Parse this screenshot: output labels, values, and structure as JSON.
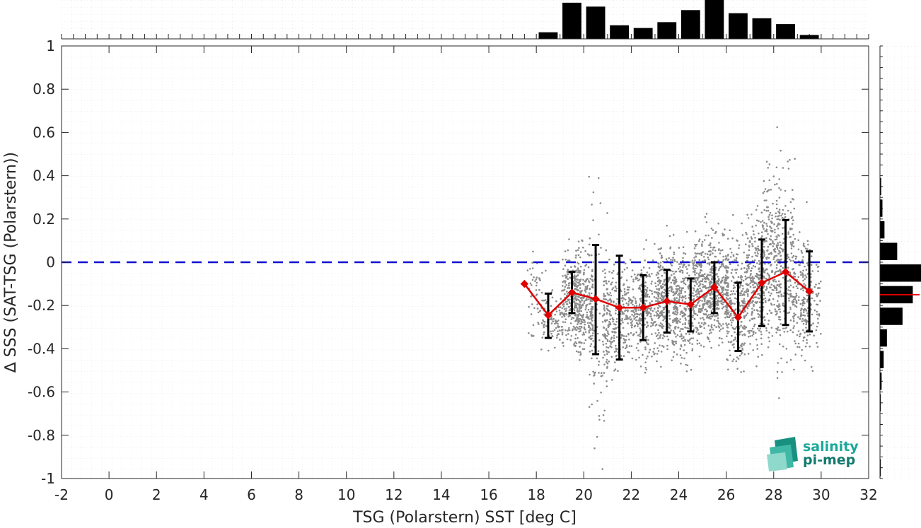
{
  "chart_data": {
    "type": "scatter",
    "title": "",
    "xlabel": "TSG (Polarstern) SST [deg C]",
    "ylabel": "∆ SSS (SAT-TSG (Polarstern))",
    "xlim": [
      -2,
      32
    ],
    "ylim": [
      -1,
      1
    ],
    "xticks": [
      -2,
      0,
      2,
      4,
      6,
      8,
      10,
      12,
      14,
      16,
      18,
      20,
      22,
      24,
      26,
      28,
      30,
      32
    ],
    "yticks": [
      -1,
      -0.8,
      -0.6,
      -0.4,
      -0.2,
      0,
      0.2,
      0.4,
      0.6,
      0.8,
      1
    ],
    "grid": "minor dotted",
    "reference_line": {
      "y": 0,
      "style": "dashed",
      "color": "#1010d0"
    },
    "binned_mean": {
      "color": "#e00000",
      "x": [
        17.5,
        18.5,
        19.5,
        20.5,
        21.5,
        22.5,
        23.5,
        24.5,
        25.5,
        26.5,
        27.5,
        28.5,
        29.5
      ],
      "y": [
        -0.1,
        -0.245,
        -0.14,
        -0.17,
        -0.21,
        -0.21,
        -0.18,
        -0.195,
        -0.115,
        -0.255,
        -0.095,
        -0.045,
        -0.135
      ],
      "err_low": [
        -0.1,
        -0.35,
        -0.235,
        -0.425,
        -0.45,
        -0.36,
        -0.325,
        -0.32,
        -0.235,
        -0.41,
        -0.295,
        -0.29,
        -0.32
      ],
      "err_high": [
        -0.1,
        -0.145,
        -0.045,
        0.08,
        0.03,
        -0.06,
        -0.035,
        -0.075,
        0.0,
        -0.095,
        0.105,
        0.195,
        0.05
      ]
    },
    "scatter_color": "#8c8c8c",
    "scatter_clusters": [
      {
        "x": 18.0,
        "mean": -0.18,
        "sd": 0.1,
        "n": 60
      },
      {
        "x": 18.7,
        "mean": -0.27,
        "sd": 0.06,
        "n": 80
      },
      {
        "x": 19.5,
        "mean": -0.16,
        "sd": 0.1,
        "n": 260
      },
      {
        "x": 20.0,
        "mean": -0.2,
        "sd": 0.12,
        "n": 260
      },
      {
        "x": 20.6,
        "mean": -0.3,
        "sd": 0.28,
        "n": 80
      },
      {
        "x": 21.2,
        "mean": -0.26,
        "sd": 0.12,
        "n": 200
      },
      {
        "x": 22.0,
        "mean": -0.22,
        "sd": 0.11,
        "n": 180
      },
      {
        "x": 22.8,
        "mean": -0.22,
        "sd": 0.11,
        "n": 200
      },
      {
        "x": 23.5,
        "mean": -0.17,
        "sd": 0.12,
        "n": 260
      },
      {
        "x": 24.2,
        "mean": -0.2,
        "sd": 0.12,
        "n": 260
      },
      {
        "x": 25.0,
        "mean": -0.12,
        "sd": 0.12,
        "n": 320
      },
      {
        "x": 25.7,
        "mean": -0.12,
        "sd": 0.12,
        "n": 300
      },
      {
        "x": 26.4,
        "mean": -0.2,
        "sd": 0.14,
        "n": 260
      },
      {
        "x": 27.2,
        "mean": -0.08,
        "sd": 0.15,
        "n": 260
      },
      {
        "x": 27.9,
        "mean": 0.02,
        "sd": 0.18,
        "n": 240
      },
      {
        "x": 28.5,
        "mean": -0.02,
        "sd": 0.22,
        "n": 220
      },
      {
        "x": 29.2,
        "mean": -0.15,
        "sd": 0.14,
        "n": 160
      },
      {
        "x": 29.6,
        "mean": -0.2,
        "sd": 0.12,
        "n": 80
      }
    ],
    "top_histogram": {
      "bin_centers": [
        18.5,
        19.5,
        20.5,
        21.5,
        22.5,
        23.5,
        24.5,
        25.5,
        26.5,
        27.5,
        28.5,
        29.5
      ],
      "relative_counts": [
        0.17,
        0.93,
        0.83,
        0.35,
        0.28,
        0.43,
        0.74,
        1.0,
        0.66,
        0.53,
        0.38,
        0.1
      ]
    },
    "side_histogram": {
      "bin_centers": [
        -0.95,
        -0.85,
        -0.75,
        -0.65,
        -0.55,
        -0.45,
        -0.35,
        -0.25,
        -0.15,
        -0.05,
        0.05,
        0.15,
        0.25,
        0.35
      ],
      "relative_counts": [
        0.02,
        0.01,
        0.01,
        0.02,
        0.04,
        0.09,
        0.17,
        0.55,
        0.8,
        1.0,
        0.42,
        0.11,
        0.06,
        0.03
      ],
      "mean_line": -0.15,
      "mean_line_color": "#e00000"
    }
  },
  "logo": {
    "line1": "salinity",
    "line2": "pi-mep",
    "color1": "#19a89a",
    "color2": "#137a6e"
  }
}
